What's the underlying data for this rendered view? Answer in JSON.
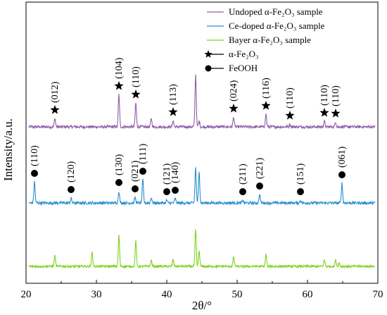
{
  "chart_data": {
    "type": "line",
    "xlabel": "2θ/°",
    "ylabel": "Intensity/a.u.",
    "xlim": [
      20,
      70
    ],
    "x_ticks": [
      20,
      30,
      40,
      50,
      60,
      70
    ],
    "y_ticks_shown": false,
    "legend_position": "top-right",
    "legend": [
      {
        "label": "Undoped α-Fe₂O₃ sample",
        "color": "#8e5fa8",
        "marker": "line"
      },
      {
        "label": "Ce-doped α-Fe₂O₃ sample",
        "color": "#2a8fce",
        "marker": "line"
      },
      {
        "label": "Bayer α-Fe₂O₃ sample",
        "color": "#7ed321",
        "marker": "line"
      },
      {
        "label": "α-Fe₂O₃",
        "color": "#000000",
        "marker": "star"
      },
      {
        "label": "FeOOH",
        "color": "#000000",
        "marker": "circle"
      }
    ],
    "series": [
      {
        "name": "Undoped α-Fe₂O₃ sample",
        "color": "#8e5fa8",
        "baseline": 0.0,
        "peaks": [
          {
            "x": 24.1,
            "h": 0.12
          },
          {
            "x": 33.2,
            "h": 0.46
          },
          {
            "x": 35.6,
            "h": 0.34
          },
          {
            "x": 37.8,
            "h": 0.12
          },
          {
            "x": 40.9,
            "h": 0.09
          },
          {
            "x": 44.1,
            "h": 0.74
          },
          {
            "x": 44.6,
            "h": 0.08
          },
          {
            "x": 49.5,
            "h": 0.14
          },
          {
            "x": 54.1,
            "h": 0.18
          },
          {
            "x": 57.5,
            "h": 0.04
          },
          {
            "x": 62.4,
            "h": 0.08
          },
          {
            "x": 64.0,
            "h": 0.07
          }
        ]
      },
      {
        "name": "Ce-doped α-Fe₂O₃ sample",
        "color": "#2a8fce",
        "baseline": 0.0,
        "peaks": [
          {
            "x": 21.2,
            "h": 0.3
          },
          {
            "x": 26.4,
            "h": 0.07
          },
          {
            "x": 33.2,
            "h": 0.17
          },
          {
            "x": 35.5,
            "h": 0.08
          },
          {
            "x": 36.6,
            "h": 0.33
          },
          {
            "x": 37.8,
            "h": 0.08
          },
          {
            "x": 40.0,
            "h": 0.04
          },
          {
            "x": 41.2,
            "h": 0.06
          },
          {
            "x": 44.1,
            "h": 0.5
          },
          {
            "x": 44.6,
            "h": 0.45
          },
          {
            "x": 50.8,
            "h": 0.04
          },
          {
            "x": 53.2,
            "h": 0.12
          },
          {
            "x": 59.0,
            "h": 0.04
          },
          {
            "x": 64.9,
            "h": 0.28
          }
        ]
      },
      {
        "name": "Bayer α-Fe₂O₃ sample",
        "color": "#7ed321",
        "baseline": 0.0,
        "peaks": [
          {
            "x": 24.1,
            "h": 0.15
          },
          {
            "x": 29.4,
            "h": 0.2
          },
          {
            "x": 33.2,
            "h": 0.44
          },
          {
            "x": 35.6,
            "h": 0.36
          },
          {
            "x": 37.8,
            "h": 0.09
          },
          {
            "x": 40.9,
            "h": 0.09
          },
          {
            "x": 44.1,
            "h": 0.52
          },
          {
            "x": 44.6,
            "h": 0.22
          },
          {
            "x": 49.5,
            "h": 0.13
          },
          {
            "x": 54.1,
            "h": 0.17
          },
          {
            "x": 62.4,
            "h": 0.09
          },
          {
            "x": 64.0,
            "h": 0.09
          },
          {
            "x": 64.5,
            "h": 0.05
          }
        ]
      }
    ],
    "annotations": [
      {
        "series": 0,
        "x": 24.1,
        "marker": "star",
        "label": "(012)",
        "label_dx": 0,
        "label_dy": 0
      },
      {
        "series": 0,
        "x": 33.2,
        "marker": "star",
        "label": "(104)",
        "label_dx": 0,
        "label_dy": 0
      },
      {
        "series": 0,
        "x": 35.6,
        "marker": "star",
        "label": "(110)",
        "label_dx": 0,
        "label_dy": 0
      },
      {
        "series": 0,
        "x": 40.9,
        "marker": "star",
        "label": "(113)",
        "label_dx": 0,
        "label_dy": 0
      },
      {
        "series": 0,
        "x": 49.5,
        "marker": "star",
        "label": "(024)",
        "label_dx": 0,
        "label_dy": 0
      },
      {
        "series": 0,
        "x": 54.1,
        "marker": "star",
        "label": "(116)",
        "label_dx": 0,
        "label_dy": 0
      },
      {
        "series": 0,
        "x": 57.5,
        "marker": "star",
        "label": "(110)",
        "label_dx": 0,
        "label_dy": 0
      },
      {
        "series": 0,
        "x": 62.4,
        "marker": "star",
        "label": "(110)",
        "label_dx": 0,
        "label_dy": 0
      },
      {
        "series": 0,
        "x": 64.0,
        "marker": "star",
        "label": "(110)",
        "label_dx": 0,
        "label_dy": 0
      },
      {
        "series": 1,
        "x": 21.2,
        "marker": "circle",
        "label": "(110)",
        "label_dx": 0,
        "label_dy": 0
      },
      {
        "series": 1,
        "x": 26.4,
        "marker": "circle",
        "label": "(120)",
        "label_dx": 0,
        "label_dy": 0
      },
      {
        "series": 1,
        "x": 33.2,
        "marker": "circle",
        "label": "(130)",
        "label_dx": 0,
        "label_dy": 0
      },
      {
        "series": 1,
        "x": 35.5,
        "marker": "circle",
        "label": "(021)",
        "label_dx": 0,
        "label_dy": 0
      },
      {
        "series": 1,
        "x": 36.6,
        "marker": "circle",
        "label": "(111)",
        "label_dx": 0,
        "label_dy": 0
      },
      {
        "series": 1,
        "x": 40.0,
        "marker": "circle",
        "label": "(121)",
        "label_dx": 0,
        "label_dy": 0
      },
      {
        "series": 1,
        "x": 41.2,
        "marker": "circle",
        "label": "(140)",
        "label_dx": 0,
        "label_dy": 0
      },
      {
        "series": 1,
        "x": 50.8,
        "marker": "circle",
        "label": "(211)",
        "label_dx": 0,
        "label_dy": 0
      },
      {
        "series": 1,
        "x": 53.2,
        "marker": "circle",
        "label": "(221)",
        "label_dx": 0,
        "label_dy": 0
      },
      {
        "series": 1,
        "x": 59.0,
        "marker": "circle",
        "label": "(151)",
        "label_dx": 0,
        "label_dy": 0
      },
      {
        "series": 1,
        "x": 64.9,
        "marker": "circle",
        "label": "(061)",
        "label_dx": 0,
        "label_dy": 0
      }
    ]
  }
}
